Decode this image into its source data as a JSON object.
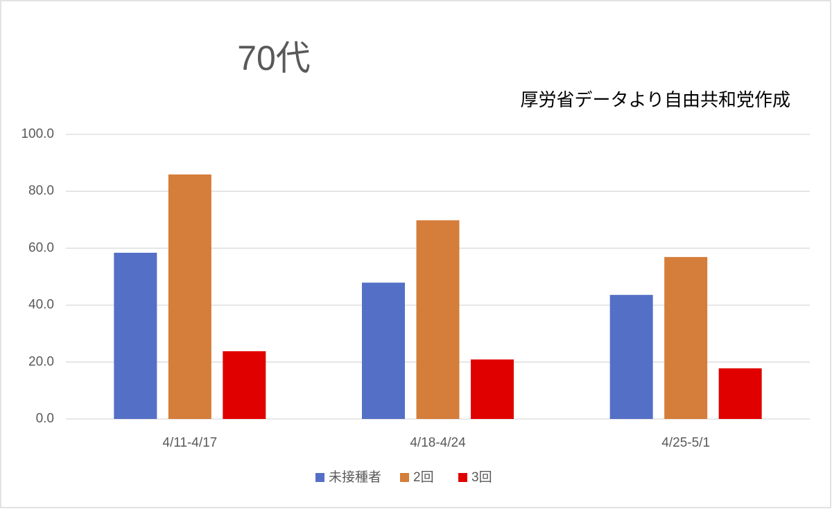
{
  "chart_data": {
    "type": "bar",
    "title": "70代",
    "subtitle": "厚労省データより自由共和党作成",
    "categories": [
      "4/11-4/17",
      "4/18-4/24",
      "4/25-5/1"
    ],
    "series": [
      {
        "name": "未接種者",
        "color": "#5470c6",
        "values": [
          58.4,
          47.9,
          43.6
        ]
      },
      {
        "name": "2回",
        "color": "#d57d3a",
        "values": [
          85.9,
          69.8,
          56.9
        ]
      },
      {
        "name": "3回",
        "color": "#e00000",
        "values": [
          23.8,
          20.9,
          17.8
        ]
      }
    ],
    "ylim": [
      0,
      100
    ],
    "yticks": [
      {
        "value": 0,
        "label": "0.0"
      },
      {
        "value": 20,
        "label": "20.0"
      },
      {
        "value": 40,
        "label": "40.0"
      },
      {
        "value": 60,
        "label": "60.0"
      },
      {
        "value": 80,
        "label": "80.0"
      },
      {
        "value": 100,
        "label": "100.0"
      }
    ],
    "grid": true,
    "legend": "bottom"
  }
}
